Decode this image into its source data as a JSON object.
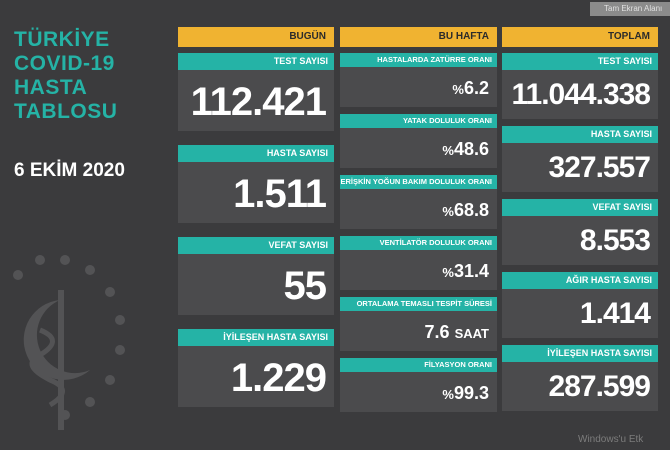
{
  "title_lines": [
    "TÜRKİYE",
    "COVID-19",
    "HASTA",
    "TABLOSU"
  ],
  "date": "6 EKİM 2020",
  "screen_label": "Tam Ekran Alanı",
  "watermark": "Windows'u Etk",
  "columns": {
    "today": {
      "header": "BUGÜN",
      "cards": [
        {
          "label": "TEST SAYISI",
          "value": "112.421"
        },
        {
          "label": "HASTA SAYISI",
          "value": "1.511"
        },
        {
          "label": "VEFAT SAYISI",
          "value": "55"
        },
        {
          "label": "İYİLEŞEN HASTA SAYISI",
          "value": "1.229"
        }
      ]
    },
    "week": {
      "header": "BU HAFTA",
      "cards": [
        {
          "label": "HASTALARDA ZATÜRRE ORANI",
          "prefix": "%",
          "value": "6.2"
        },
        {
          "label": "YATAK DOLULUK ORANI",
          "prefix": "%",
          "value": "48.6"
        },
        {
          "label": "ERİŞKİN YOĞUN BAKIM DOLULUK ORANI",
          "prefix": "%",
          "value": "68.8"
        },
        {
          "label": "VENTİLATÖR DOLULUK ORANI",
          "prefix": "%",
          "value": "31.4"
        },
        {
          "label": "ORTALAMA TEMASLI TESPİT SÜRESİ",
          "value": "7.6",
          "unit": "SAAT"
        },
        {
          "label": "FİLYASYON ORANI",
          "prefix": "%",
          "value": "99.3"
        }
      ]
    },
    "total": {
      "header": "TOPLAM",
      "cards": [
        {
          "label": "TEST SAYISI",
          "value": "11.044.338"
        },
        {
          "label": "HASTA SAYISI",
          "value": "327.557"
        },
        {
          "label": "VEFAT SAYISI",
          "value": "8.553"
        },
        {
          "label": "AĞIR HASTA SAYISI",
          "value": "1.414"
        },
        {
          "label": "İYİLEŞEN HASTA SAYISI",
          "value": "287.599"
        }
      ]
    }
  }
}
